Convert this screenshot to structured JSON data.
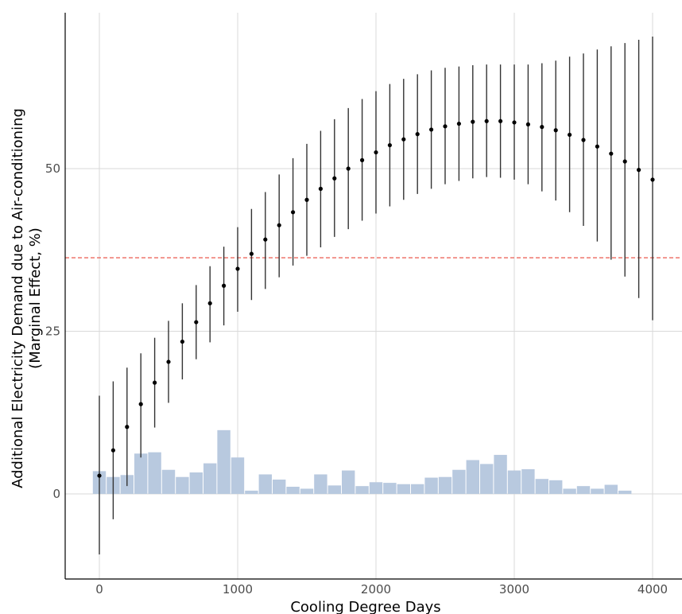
{
  "chart_data": {
    "type": "scatter",
    "xlabel": "Cooling Degree Days",
    "ylabel_line1": "Additional Electricity Demand due to Air-conditioning",
    "ylabel_line2": "(Marginal Effect, %)",
    "xlim": [
      -250,
      4200
    ],
    "ylim": [
      -13,
      75
    ],
    "xticks": [
      0,
      1000,
      2000,
      3000,
      4000
    ],
    "yticks": [
      0,
      25,
      50
    ],
    "grid": true,
    "reference_line": {
      "y": 36.3,
      "style": "dashed",
      "color": "#e8473b"
    },
    "points": [
      {
        "x": 0,
        "y": 2.8,
        "lo": -9.3,
        "hi": 15.1
      },
      {
        "x": 100,
        "y": 6.7,
        "lo": -3.9,
        "hi": 17.3
      },
      {
        "x": 200,
        "y": 10.3,
        "lo": 1.2,
        "hi": 19.4
      },
      {
        "x": 300,
        "y": 13.8,
        "lo": 5.6,
        "hi": 21.6
      },
      {
        "x": 400,
        "y": 17.1,
        "lo": 10.2,
        "hi": 24.0
      },
      {
        "x": 500,
        "y": 20.3,
        "lo": 14.0,
        "hi": 26.6
      },
      {
        "x": 600,
        "y": 23.4,
        "lo": 17.6,
        "hi": 29.3
      },
      {
        "x": 700,
        "y": 26.4,
        "lo": 20.7,
        "hi": 32.1
      },
      {
        "x": 800,
        "y": 29.3,
        "lo": 23.3,
        "hi": 35.0
      },
      {
        "x": 900,
        "y": 32.0,
        "lo": 25.9,
        "hi": 38.0
      },
      {
        "x": 1000,
        "y": 34.6,
        "lo": 28.0,
        "hi": 41.0
      },
      {
        "x": 1100,
        "y": 36.9,
        "lo": 29.8,
        "hi": 43.8
      },
      {
        "x": 1200,
        "y": 39.1,
        "lo": 31.5,
        "hi": 46.4
      },
      {
        "x": 1300,
        "y": 41.3,
        "lo": 33.3,
        "hi": 49.1
      },
      {
        "x": 1400,
        "y": 43.3,
        "lo": 35.1,
        "hi": 51.6
      },
      {
        "x": 1500,
        "y": 45.2,
        "lo": 36.6,
        "hi": 53.8
      },
      {
        "x": 1600,
        "y": 46.9,
        "lo": 37.9,
        "hi": 55.8
      },
      {
        "x": 1700,
        "y": 48.5,
        "lo": 39.5,
        "hi": 57.6
      },
      {
        "x": 1800,
        "y": 50.0,
        "lo": 40.7,
        "hi": 59.3
      },
      {
        "x": 1900,
        "y": 51.3,
        "lo": 42.0,
        "hi": 60.7
      },
      {
        "x": 2000,
        "y": 52.5,
        "lo": 43.1,
        "hi": 61.9
      },
      {
        "x": 2100,
        "y": 53.6,
        "lo": 44.2,
        "hi": 63.0
      },
      {
        "x": 2200,
        "y": 54.5,
        "lo": 45.2,
        "hi": 63.8
      },
      {
        "x": 2300,
        "y": 55.3,
        "lo": 46.1,
        "hi": 64.5
      },
      {
        "x": 2400,
        "y": 56.0,
        "lo": 46.9,
        "hi": 65.1
      },
      {
        "x": 2500,
        "y": 56.5,
        "lo": 47.6,
        "hi": 65.5
      },
      {
        "x": 2600,
        "y": 56.9,
        "lo": 48.1,
        "hi": 65.7
      },
      {
        "x": 2700,
        "y": 57.2,
        "lo": 48.5,
        "hi": 65.9
      },
      {
        "x": 2800,
        "y": 57.3,
        "lo": 48.7,
        "hi": 66.0
      },
      {
        "x": 2900,
        "y": 57.3,
        "lo": 48.6,
        "hi": 66.0
      },
      {
        "x": 3000,
        "y": 57.1,
        "lo": 48.3,
        "hi": 66.0
      },
      {
        "x": 3100,
        "y": 56.8,
        "lo": 47.6,
        "hi": 66.0
      },
      {
        "x": 3200,
        "y": 56.4,
        "lo": 46.5,
        "hi": 66.2
      },
      {
        "x": 3300,
        "y": 55.9,
        "lo": 45.1,
        "hi": 66.6
      },
      {
        "x": 3400,
        "y": 55.2,
        "lo": 43.3,
        "hi": 67.2
      },
      {
        "x": 3500,
        "y": 54.4,
        "lo": 41.2,
        "hi": 67.7
      },
      {
        "x": 3600,
        "y": 53.4,
        "lo": 38.8,
        "hi": 68.3
      },
      {
        "x": 3700,
        "y": 52.3,
        "lo": 36.0,
        "hi": 68.8
      },
      {
        "x": 3800,
        "y": 51.1,
        "lo": 33.4,
        "hi": 69.3
      },
      {
        "x": 3900,
        "y": 49.8,
        "lo": 30.1,
        "hi": 69.8
      },
      {
        "x": 4000,
        "y": 48.3,
        "lo": 26.7,
        "hi": 70.3
      }
    ],
    "histogram": {
      "bin_width": 100,
      "color": "#b8c9df",
      "bins": [
        {
          "x": 0,
          "h": 3.5
        },
        {
          "x": 100,
          "h": 2.6
        },
        {
          "x": 200,
          "h": 2.9
        },
        {
          "x": 300,
          "h": 6.2
        },
        {
          "x": 400,
          "h": 6.4
        },
        {
          "x": 500,
          "h": 3.7
        },
        {
          "x": 600,
          "h": 2.6
        },
        {
          "x": 700,
          "h": 3.3
        },
        {
          "x": 800,
          "h": 4.7
        },
        {
          "x": 900,
          "h": 9.8
        },
        {
          "x": 1000,
          "h": 5.6
        },
        {
          "x": 1100,
          "h": 0.5
        },
        {
          "x": 1200,
          "h": 3.0
        },
        {
          "x": 1300,
          "h": 2.2
        },
        {
          "x": 1400,
          "h": 1.1
        },
        {
          "x": 1500,
          "h": 0.8
        },
        {
          "x": 1600,
          "h": 3.0
        },
        {
          "x": 1700,
          "h": 1.3
        },
        {
          "x": 1800,
          "h": 3.6
        },
        {
          "x": 1900,
          "h": 1.2
        },
        {
          "x": 2000,
          "h": 1.8
        },
        {
          "x": 2100,
          "h": 1.7
        },
        {
          "x": 2200,
          "h": 1.5
        },
        {
          "x": 2300,
          "h": 1.5
        },
        {
          "x": 2400,
          "h": 2.5
        },
        {
          "x": 2500,
          "h": 2.6
        },
        {
          "x": 2600,
          "h": 3.7
        },
        {
          "x": 2700,
          "h": 5.2
        },
        {
          "x": 2800,
          "h": 4.6
        },
        {
          "x": 2900,
          "h": 6.0
        },
        {
          "x": 3000,
          "h": 3.6
        },
        {
          "x": 3100,
          "h": 3.8
        },
        {
          "x": 3200,
          "h": 2.3
        },
        {
          "x": 3300,
          "h": 2.1
        },
        {
          "x": 3400,
          "h": 0.8
        },
        {
          "x": 3500,
          "h": 1.2
        },
        {
          "x": 3600,
          "h": 0.8
        },
        {
          "x": 3700,
          "h": 1.4
        },
        {
          "x": 3800,
          "h": 0.5
        }
      ]
    }
  }
}
